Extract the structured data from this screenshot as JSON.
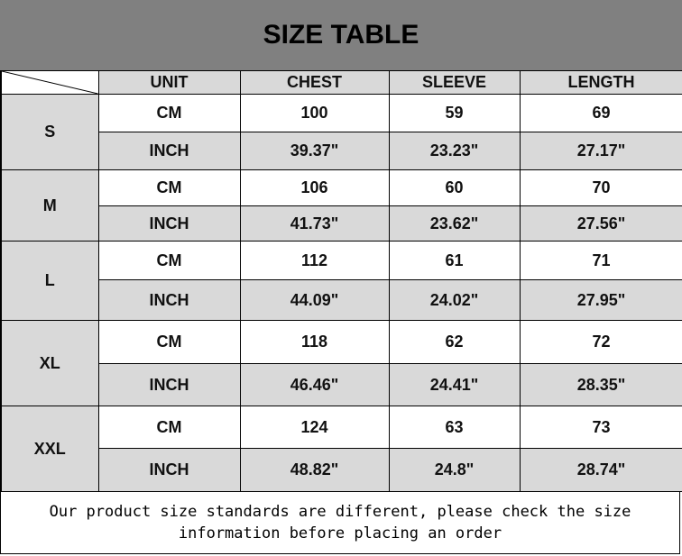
{
  "title": "SIZE TABLE",
  "headers": [
    "UNIT",
    "CHEST",
    "SLEEVE",
    "LENGTH"
  ],
  "sizes": [
    {
      "size": "S",
      "rows": [
        [
          "CM",
          "100",
          "59",
          "69"
        ],
        [
          "INCH",
          "39.37\"",
          "23.23\"",
          "27.17\""
        ]
      ]
    },
    {
      "size": "M",
      "rows": [
        [
          "CM",
          "106",
          "60",
          "70"
        ],
        [
          "INCH",
          "41.73\"",
          "23.62\"",
          "27.56\""
        ]
      ]
    },
    {
      "size": "L",
      "rows": [
        [
          "CM",
          "112",
          "61",
          "71"
        ],
        [
          "INCH",
          "44.09\"",
          "24.02\"",
          "27.95\""
        ]
      ]
    },
    {
      "size": "XL",
      "rows": [
        [
          "CM",
          "118",
          "62",
          "72"
        ],
        [
          "INCH",
          "46.46\"",
          "24.41\"",
          "28.35\""
        ]
      ]
    },
    {
      "size": "XXL",
      "rows": [
        [
          "CM",
          "124",
          "63",
          "73"
        ],
        [
          "INCH",
          "48.82\"",
          "24.8\"",
          "28.74\""
        ]
      ]
    }
  ],
  "footer": "Our product size standards are different, please check the size information before placing an order",
  "colors": {
    "title_bg": "#808080",
    "shaded_cell": "#d9d9d9"
  }
}
